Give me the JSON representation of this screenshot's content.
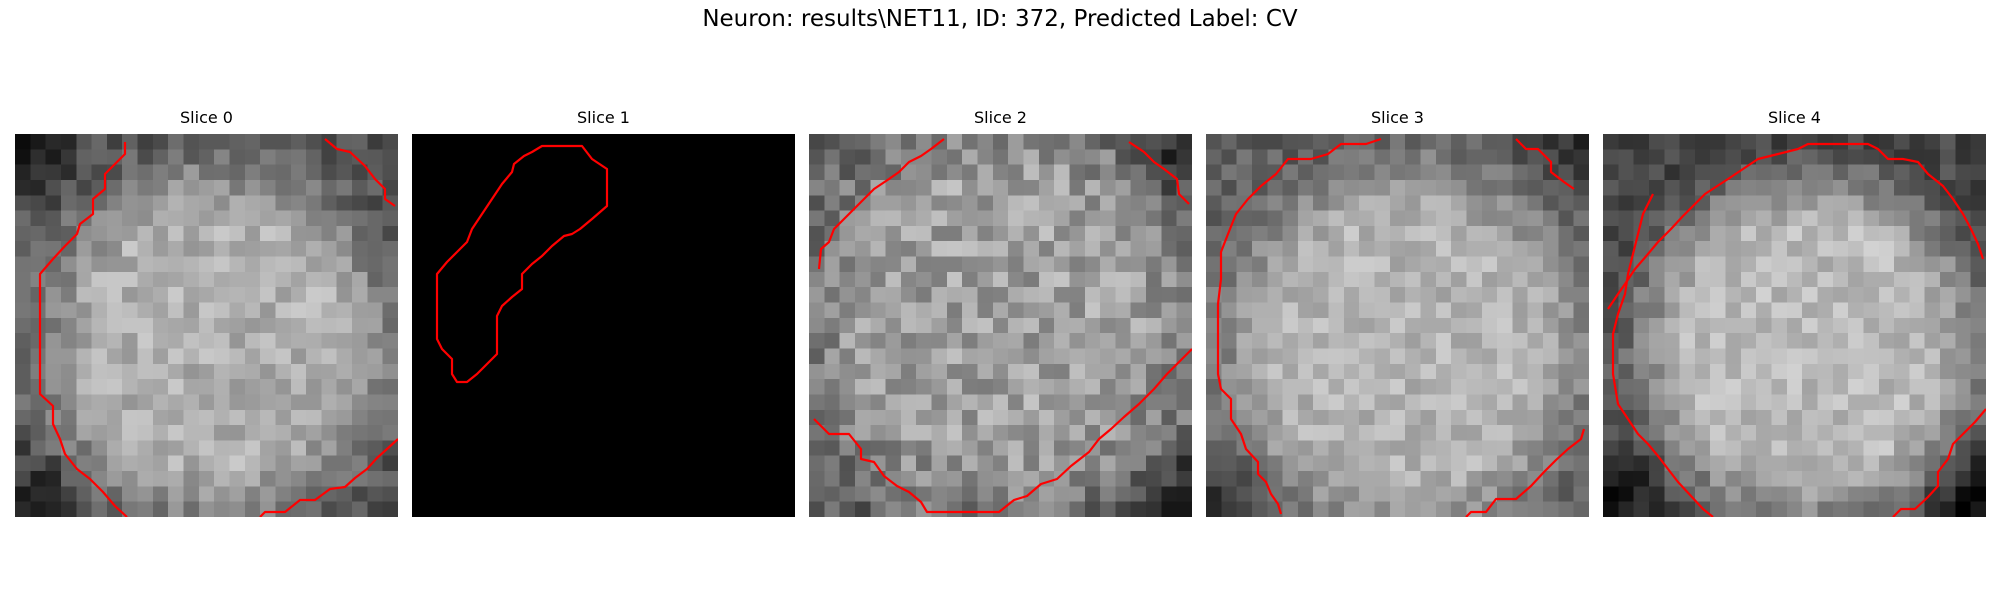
{
  "figure": {
    "title": "Neuron: results\\NET11, ID: 372, Predicted Label: CV"
  },
  "panels": [
    {
      "title": "Slice 0"
    },
    {
      "title": "Slice 1"
    },
    {
      "title": "Slice 2"
    },
    {
      "title": "Slice 3"
    },
    {
      "title": "Slice 4"
    }
  ],
  "colors": {
    "contour": "#ff0000",
    "background": "#ffffff"
  }
}
